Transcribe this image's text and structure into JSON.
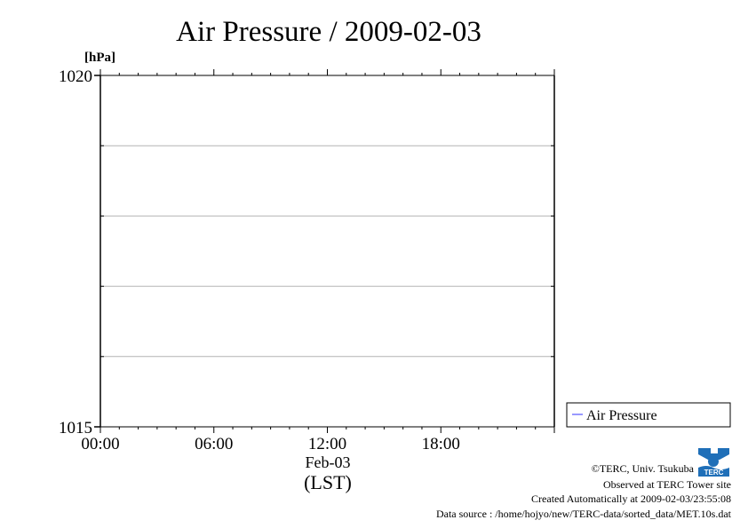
{
  "chart_data": {
    "type": "line",
    "title": "Air Pressure / 2009-02-03",
    "ylabel": "[hPa]",
    "xlabel": "(LST)",
    "date_label": "Feb-03",
    "xlim": [
      0,
      24
    ],
    "ylim": [
      1015,
      1020
    ],
    "x_ticks": [
      0,
      6,
      12,
      18
    ],
    "x_tick_labels": [
      "00:00",
      "06:00",
      "12:00",
      "18:00"
    ],
    "y_tick_labels": [
      "1020",
      "1015"
    ],
    "y_ticks_major": [
      1015,
      1020
    ],
    "y_gridlines": [
      1016,
      1017,
      1018,
      1019
    ],
    "grid": true,
    "legend": "right",
    "series": [
      {
        "name": "Air Pressure",
        "color": "#3333ff",
        "x": [],
        "y": []
      }
    ]
  },
  "footer": {
    "credit": "©TERC, Univ. Tsukuba",
    "observed": "Observed at TERC Tower site",
    "created": "Created Automatically at 2009-02-03/23:55:08",
    "source": "Data source : /home/hojyo/new/TERC-data/sorted_data/MET.10s.dat"
  },
  "logo": {
    "icon": "terc-logo-icon",
    "text": "TERC",
    "color": "#1f6fb8"
  }
}
